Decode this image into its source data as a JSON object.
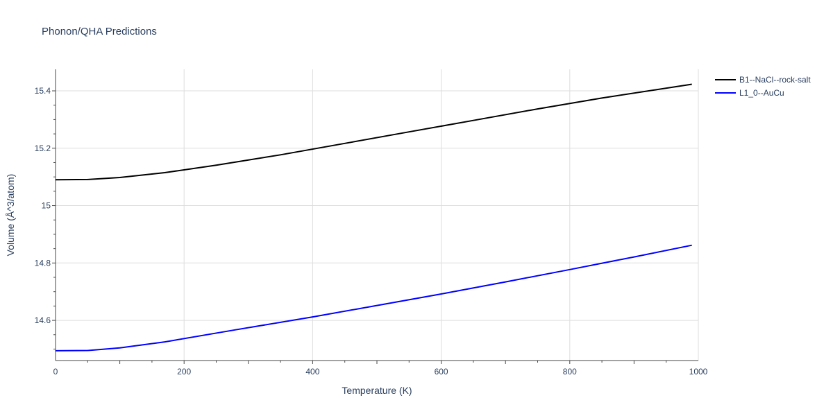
{
  "chart_data": {
    "type": "line",
    "title": "Phonon/QHA Predictions",
    "xlabel": "Temperature (K)",
    "ylabel": "Volume (Å^3/atom)",
    "xlim": [
      0,
      1000
    ],
    "ylim": [
      14.46,
      15.475
    ],
    "xticks": [
      0,
      200,
      400,
      600,
      800,
      1000
    ],
    "xtick_labels": [
      "0",
      "200",
      "400",
      "600",
      "800",
      "1000"
    ],
    "yticks": [
      14.6,
      14.8,
      15.0,
      15.2,
      15.4
    ],
    "ytick_labels": [
      "14.6",
      "14.8",
      "15",
      "15.2",
      "15.4"
    ],
    "grid": true,
    "legend_position": "top-right",
    "series": [
      {
        "name": "B1--NaCl--rock-salt",
        "color": "#000000",
        "x": [
          0,
          50,
          100,
          170,
          250,
          350,
          450,
          550,
          650,
          750,
          850,
          990
        ],
        "y": [
          15.09,
          15.091,
          15.098,
          15.115,
          15.141,
          15.177,
          15.217,
          15.257,
          15.297,
          15.337,
          15.375,
          15.423
        ]
      },
      {
        "name": "L1_0--AuCu",
        "color": "#0000ff",
        "x": [
          0,
          50,
          100,
          170,
          280,
          400,
          500,
          600,
          700,
          800,
          900,
          990
        ],
        "y": [
          14.494,
          14.495,
          14.504,
          14.525,
          14.567,
          14.612,
          14.652,
          14.692,
          14.734,
          14.777,
          14.821,
          14.862
        ]
      }
    ]
  }
}
